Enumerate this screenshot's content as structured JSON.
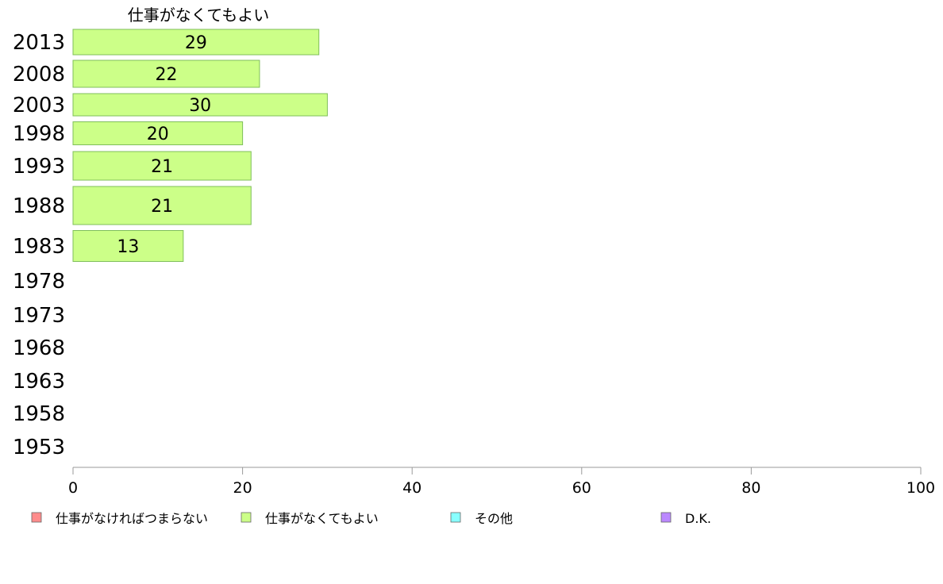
{
  "chart_data": {
    "type": "bar",
    "orientation": "horizontal",
    "stacked": true,
    "categories": [
      "2013",
      "2008",
      "2003",
      "1998",
      "1993",
      "1988",
      "1983",
      "1978",
      "1973",
      "1968",
      "1963",
      "1958",
      "1953"
    ],
    "series": [
      {
        "name": "仕事がなければつまらない",
        "color": "#ff8c8c",
        "values": [
          null,
          null,
          null,
          null,
          null,
          null,
          null,
          null,
          null,
          null,
          null,
          null,
          null
        ]
      },
      {
        "name": "仕事がなくてもよい",
        "color": "#ccff88",
        "values": [
          29,
          22,
          30,
          20,
          21,
          21,
          13,
          null,
          null,
          null,
          null,
          null,
          null
        ]
      },
      {
        "name": "その他",
        "color": "#88ffff",
        "values": [
          null,
          null,
          null,
          null,
          null,
          null,
          null,
          null,
          null,
          null,
          null,
          null,
          null
        ]
      },
      {
        "name": "D.K.",
        "color": "#bb88ff",
        "values": [
          null,
          null,
          null,
          null,
          null,
          null,
          null,
          null,
          null,
          null,
          null,
          null,
          null
        ]
      }
    ],
    "visible_series_title": "仕事がなくてもよい",
    "xlim": [
      0,
      100
    ],
    "xticks": [
      0,
      20,
      40,
      60,
      80,
      100
    ],
    "legend_position": "bottom",
    "grid": false
  }
}
